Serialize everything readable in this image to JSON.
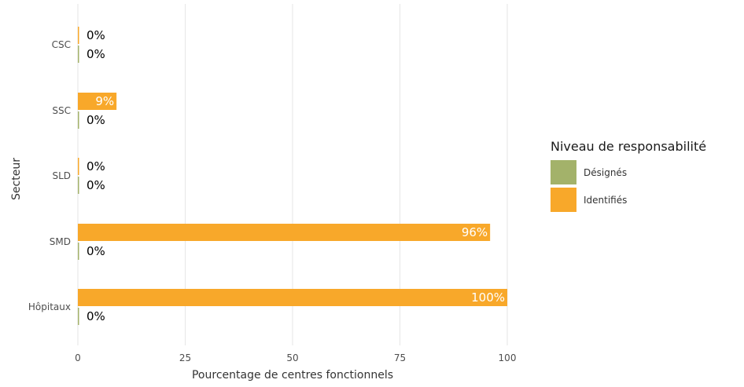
{
  "chart_data": {
    "type": "bar",
    "orientation": "horizontal",
    "categories": [
      "CSC",
      "SSC",
      "SLD",
      "SMD",
      "Hôpitaux"
    ],
    "series": [
      {
        "name": "Désignés",
        "color": "#a3b26a",
        "values": [
          0,
          0,
          0,
          0,
          0
        ],
        "labels": [
          "0%",
          "0%",
          "0%",
          "0%",
          "0%"
        ]
      },
      {
        "name": "Identifiés",
        "color": "#f8a82a",
        "values": [
          0,
          9,
          0,
          96,
          100
        ],
        "labels": [
          "0%",
          "9%",
          "0%",
          "96%",
          "100%"
        ]
      }
    ],
    "xlabel": "Pourcentage de centres fonctionnels",
    "ylabel": "Secteur",
    "xlim": [
      0,
      100
    ],
    "xticks": [
      0,
      25,
      50,
      75,
      100
    ],
    "grid": "vertical",
    "legend": {
      "title": "Niveau de responsabilité",
      "position": "right"
    }
  }
}
